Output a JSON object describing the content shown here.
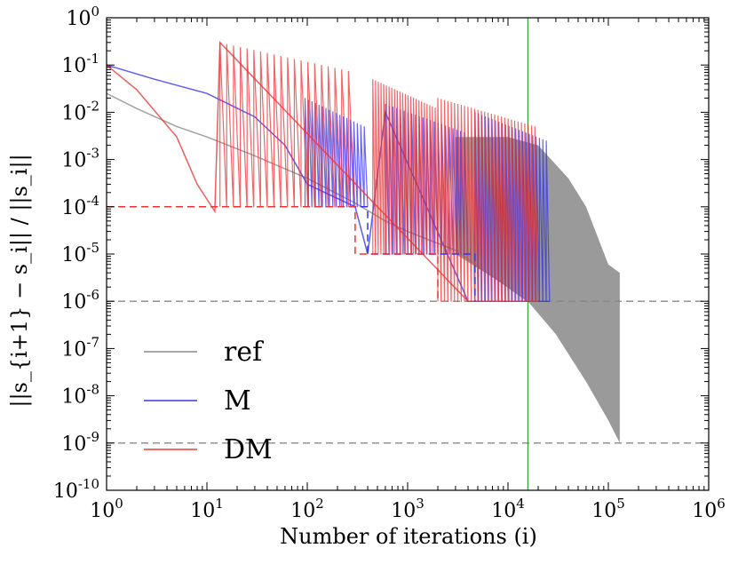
{
  "chart_data": {
    "type": "line",
    "xscale": "log",
    "yscale": "log",
    "xlim": [
      1,
      1000000
    ],
    "ylim": [
      1e-10,
      1
    ],
    "xlabel": "Number of iterations (i)",
    "ylabel": "||s_{i+1} − s_i|| / ||s_i||",
    "xticks": [
      {
        "base": "10",
        "exp": "0"
      },
      {
        "base": "10",
        "exp": "1"
      },
      {
        "base": "10",
        "exp": "2"
      },
      {
        "base": "10",
        "exp": "3"
      },
      {
        "base": "10",
        "exp": "4"
      },
      {
        "base": "10",
        "exp": "5"
      },
      {
        "base": "10",
        "exp": "6"
      }
    ],
    "yticks": [
      {
        "base": "10",
        "exp": "0"
      },
      {
        "base": "10",
        "exp": "-1"
      },
      {
        "base": "10",
        "exp": "-2"
      },
      {
        "base": "10",
        "exp": "-3"
      },
      {
        "base": "10",
        "exp": "-4"
      },
      {
        "base": "10",
        "exp": "-5"
      },
      {
        "base": "10",
        "exp": "-6"
      },
      {
        "base": "10",
        "exp": "-7"
      },
      {
        "base": "10",
        "exp": "-8"
      },
      {
        "base": "10",
        "exp": "-9"
      },
      {
        "base": "10",
        "exp": "-10"
      }
    ],
    "legend": {
      "location": "lower-left",
      "entries": [
        {
          "label": "ref",
          "color": "#888888"
        },
        {
          "label": "M",
          "color": "#3333ee"
        },
        {
          "label": "DM",
          "color": "#ee3333"
        }
      ]
    },
    "reference_lines": [
      {
        "orientation": "horizontal",
        "y": 1e-06,
        "color": "#888888",
        "style": "dashed"
      },
      {
        "orientation": "horizontal",
        "y": 1e-09,
        "color": "#888888",
        "style": "dashed"
      },
      {
        "orientation": "vertical",
        "x": 15800,
        "color": "#33aa33",
        "style": "solid"
      }
    ],
    "series": [
      {
        "name": "ref",
        "color": "#888888",
        "style": "solid",
        "points": [
          [
            1,
            0.025
          ],
          [
            2,
            0.012
          ],
          [
            5,
            0.005
          ],
          [
            10,
            0.003
          ],
          [
            30,
            0.0012
          ],
          [
            100,
            0.0004
          ],
          [
            300,
            0.00012
          ],
          [
            600,
            5e-05
          ],
          [
            1000,
            3e-05
          ],
          [
            3000,
            1.2e-05
          ],
          [
            10000,
            2e-06
          ],
          [
            15800,
            1e-06
          ]
        ],
        "envelope_upper": [
          [
            3000,
            0.003
          ],
          [
            10000,
            0.003
          ],
          [
            20000,
            0.002
          ],
          [
            40000,
            0.0004
          ],
          [
            60000,
            0.0001
          ],
          [
            100000,
            6e-06
          ],
          [
            130000,
            4e-06
          ]
        ],
        "envelope_lower": [
          [
            3000,
            1e-05
          ],
          [
            10000,
            2e-06
          ],
          [
            15800,
            1e-06
          ],
          [
            30000,
            2e-07
          ],
          [
            60000,
            2e-08
          ],
          [
            100000,
            3e-09
          ],
          [
            130000,
            1e-09
          ]
        ]
      },
      {
        "name": "M",
        "color": "#3333ee",
        "style": "solid",
        "points": [
          [
            1,
            0.1
          ],
          [
            3,
            0.05
          ],
          [
            10,
            0.025
          ],
          [
            30,
            0.008
          ],
          [
            60,
            0.002
          ],
          [
            100,
            0.0003
          ],
          [
            300,
            0.0001
          ],
          [
            400,
            1e-05
          ],
          [
            600,
            0.01
          ],
          [
            4000,
            1e-06
          ],
          [
            26000,
            1e-06
          ]
        ],
        "spike_bands": [
          {
            "x_start": 95,
            "x_end": 400,
            "spikes": 18,
            "peak": 0.02,
            "floor": 0.0001
          },
          {
            "x_start": 600,
            "x_end": 4000,
            "spikes": 22,
            "peak": 0.015,
            "floor": 1e-05
          },
          {
            "x_start": 4700,
            "x_end": 26000,
            "spikes": 22,
            "peak": 0.01,
            "floor": 1e-06
          }
        ]
      },
      {
        "name": "DM",
        "color": "#ee3333",
        "style": "solid",
        "points": [
          [
            1,
            0.1
          ],
          [
            2,
            0.03
          ],
          [
            5,
            0.003
          ],
          [
            8,
            0.0003
          ],
          [
            12,
            8e-05
          ],
          [
            13.5,
            0.3
          ],
          [
            4000,
            1e-06
          ],
          [
            20000,
            1e-06
          ]
        ],
        "spike_bands": [
          {
            "x_start": 13.5,
            "x_end": 300,
            "spikes": 20,
            "peak": 0.3,
            "floor": 0.0001
          },
          {
            "x_start": 450,
            "x_end": 2000,
            "spikes": 24,
            "peak": 0.05,
            "floor": 1e-05
          },
          {
            "x_start": 2000,
            "x_end": 20000,
            "spikes": 30,
            "peak": 0.02,
            "floor": 1e-06
          }
        ]
      },
      {
        "name": "M tolerance",
        "color": "#3333ee",
        "style": "dashed",
        "points": [
          [
            1,
            0.0001
          ],
          [
            400,
            0.0001
          ],
          [
            400,
            1e-05
          ],
          [
            4700,
            1e-05
          ],
          [
            4700,
            1e-06
          ]
        ]
      },
      {
        "name": "DM tolerance",
        "color": "#ee3333",
        "style": "dashed",
        "points": [
          [
            1,
            0.0001
          ],
          [
            300,
            0.0001
          ],
          [
            300,
            1e-05
          ],
          [
            2000,
            1e-05
          ],
          [
            2000,
            1e-06
          ]
        ]
      }
    ]
  }
}
